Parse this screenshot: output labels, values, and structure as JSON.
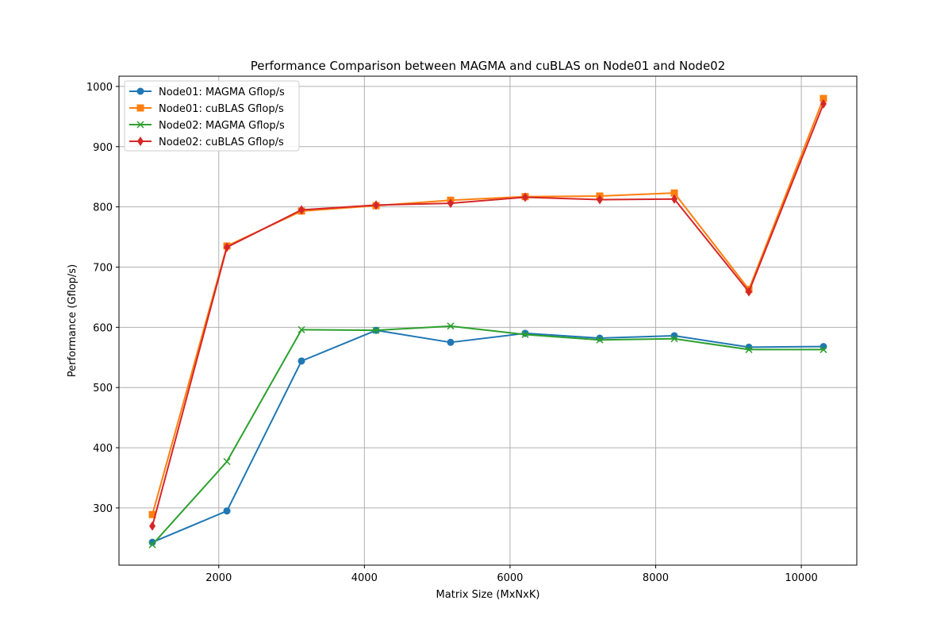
{
  "chart_data": {
    "type": "line",
    "title": "Performance Comparison between MAGMA and cuBLAS on Node01 and Node02",
    "xlabel": "Matrix Size (MxNxK)",
    "ylabel": "Performance (Gflop/s)",
    "x": [
      1088,
      2112,
      3136,
      4160,
      5184,
      6208,
      7232,
      8256,
      9280,
      10304
    ],
    "xlim": [
      630,
      10762
    ],
    "ylim": [
      205,
      1017
    ],
    "xticks": [
      2000,
      4000,
      6000,
      8000,
      10000
    ],
    "yticks": [
      300,
      400,
      500,
      600,
      700,
      800,
      900,
      1000
    ],
    "grid": true,
    "legend_position": "top-left",
    "series": [
      {
        "name": "Node01: MAGMA Gflop/s",
        "color": "#1f77b4",
        "marker": "circle",
        "values": [
          243,
          295,
          544,
          595,
          575,
          590,
          582,
          586,
          567,
          568
        ]
      },
      {
        "name": "Node01: cuBLAS Gflop/s",
        "color": "#ff7f0e",
        "marker": "square",
        "values": [
          289,
          735,
          793,
          802,
          811,
          817,
          818,
          823,
          663,
          980
        ]
      },
      {
        "name": "Node02: MAGMA Gflop/s",
        "color": "#2ca02c",
        "marker": "x",
        "values": [
          239,
          377,
          596,
          595,
          602,
          588,
          579,
          581,
          563,
          563
        ]
      },
      {
        "name": "Node02: cuBLAS Gflop/s",
        "color": "#d62728",
        "marker": "diamond",
        "values": [
          270,
          733,
          795,
          803,
          806,
          816,
          812,
          813,
          659,
          971
        ]
      }
    ]
  }
}
